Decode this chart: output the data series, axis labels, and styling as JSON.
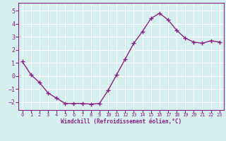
{
  "x": [
    0,
    1,
    2,
    3,
    4,
    5,
    6,
    7,
    8,
    9,
    10,
    11,
    12,
    13,
    14,
    15,
    16,
    17,
    18,
    19,
    20,
    21,
    22,
    23
  ],
  "y": [
    1.1,
    0.1,
    -0.5,
    -1.3,
    -1.7,
    -2.1,
    -2.1,
    -2.1,
    -2.15,
    -2.1,
    -1.1,
    0.1,
    1.3,
    2.5,
    3.4,
    4.4,
    4.8,
    4.3,
    3.5,
    2.9,
    2.6,
    2.5,
    2.7,
    2.6
  ],
  "line_color": "#882288",
  "marker": "+",
  "xlabel": "Windchill (Refroidissement éolien,°C)",
  "xlim": [
    -0.5,
    23.5
  ],
  "ylim": [
    -2.6,
    5.6
  ],
  "yticks": [
    -2,
    -1,
    0,
    1,
    2,
    3,
    4,
    5
  ],
  "xticks": [
    0,
    1,
    2,
    3,
    4,
    5,
    6,
    7,
    8,
    9,
    10,
    11,
    12,
    13,
    14,
    15,
    16,
    17,
    18,
    19,
    20,
    21,
    22,
    23
  ],
  "bg_color": "#d6f0ef",
  "grid_color": "#ffffff",
  "line_width": 1.0,
  "marker_size": 4
}
